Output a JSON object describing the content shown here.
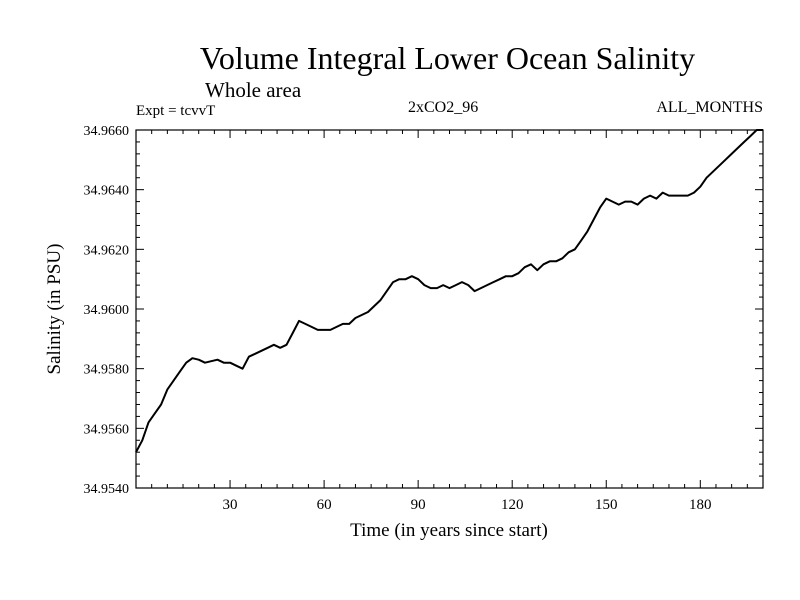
{
  "header": {
    "title": "Volume Integral Lower Ocean Salinity",
    "subtitle": "Whole area",
    "experiment": "Expt = tcvvT",
    "run": "2xCO2_96",
    "months": "ALL_MONTHS"
  },
  "chart_data": {
    "type": "line",
    "title": "Volume Integral Lower Ocean Salinity",
    "subtitle": "Whole area",
    "xlabel": "Time (in years since start)",
    "ylabel": "Salinity (in PSU)",
    "xlim": [
      0,
      200
    ],
    "ylim": [
      34.954,
      34.966
    ],
    "xticks": [
      30,
      60,
      90,
      120,
      150,
      180
    ],
    "xtick_labels": [
      "30",
      "60",
      "90",
      "120",
      "150",
      "180"
    ],
    "yticks": [
      34.954,
      34.956,
      34.958,
      34.96,
      34.962,
      34.964,
      34.966
    ],
    "ytick_labels": [
      "34.9540",
      "34.9560",
      "34.9580",
      "34.9600",
      "34.9620",
      "34.9640",
      "34.9660"
    ],
    "grid": false,
    "series": [
      {
        "color": "#000000",
        "x": [
          0,
          2,
          4,
          6,
          8,
          10,
          12,
          14,
          16,
          18,
          20,
          22,
          24,
          26,
          28,
          30,
          32,
          34,
          36,
          38,
          40,
          42,
          44,
          46,
          48,
          50,
          52,
          54,
          56,
          58,
          60,
          62,
          64,
          66,
          68,
          70,
          72,
          74,
          76,
          78,
          80,
          82,
          84,
          86,
          88,
          90,
          92,
          94,
          96,
          98,
          100,
          102,
          104,
          106,
          108,
          110,
          112,
          114,
          116,
          118,
          120,
          122,
          124,
          126,
          128,
          130,
          132,
          134,
          136,
          138,
          140,
          142,
          144,
          146,
          148,
          150,
          152,
          154,
          156,
          158,
          160,
          162,
          164,
          166,
          168,
          170,
          172,
          174,
          176,
          178,
          180,
          182,
          184,
          186,
          188,
          190,
          192,
          194,
          196,
          198,
          200
        ],
        "y": [
          34.9552,
          34.9556,
          34.9562,
          34.9565,
          34.9568,
          34.9573,
          34.9576,
          34.9579,
          34.9582,
          34.95835,
          34.9583,
          34.9582,
          34.95825,
          34.9583,
          34.9582,
          34.9582,
          34.9581,
          34.958,
          34.9584,
          34.9585,
          34.9586,
          34.9587,
          34.9588,
          34.9587,
          34.9588,
          34.9592,
          34.9596,
          34.9595,
          34.9594,
          34.9593,
          34.9593,
          34.9593,
          34.9594,
          34.9595,
          34.9595,
          34.9597,
          34.9598,
          34.9599,
          34.9601,
          34.9603,
          34.9606,
          34.9609,
          34.961,
          34.961,
          34.9611,
          34.961,
          34.9608,
          34.9607,
          34.9607,
          34.9608,
          34.9607,
          34.9608,
          34.9609,
          34.9608,
          34.9606,
          34.9607,
          34.9608,
          34.9609,
          34.961,
          34.9611,
          34.9611,
          34.9612,
          34.9614,
          34.9615,
          34.9613,
          34.9615,
          34.9616,
          34.9616,
          34.9617,
          34.9619,
          34.962,
          34.9623,
          34.9626,
          34.963,
          34.9634,
          34.9637,
          34.9636,
          34.9635,
          34.9636,
          34.9636,
          34.9635,
          34.9637,
          34.9638,
          34.9637,
          34.9639,
          34.9638,
          34.9638,
          34.9638,
          34.9638,
          34.9639,
          34.9641,
          34.9644,
          34.9646,
          34.9648,
          34.965,
          34.9652,
          34.9654,
          34.9656,
          34.9658,
          34.966,
          34.9662
        ]
      }
    ]
  }
}
